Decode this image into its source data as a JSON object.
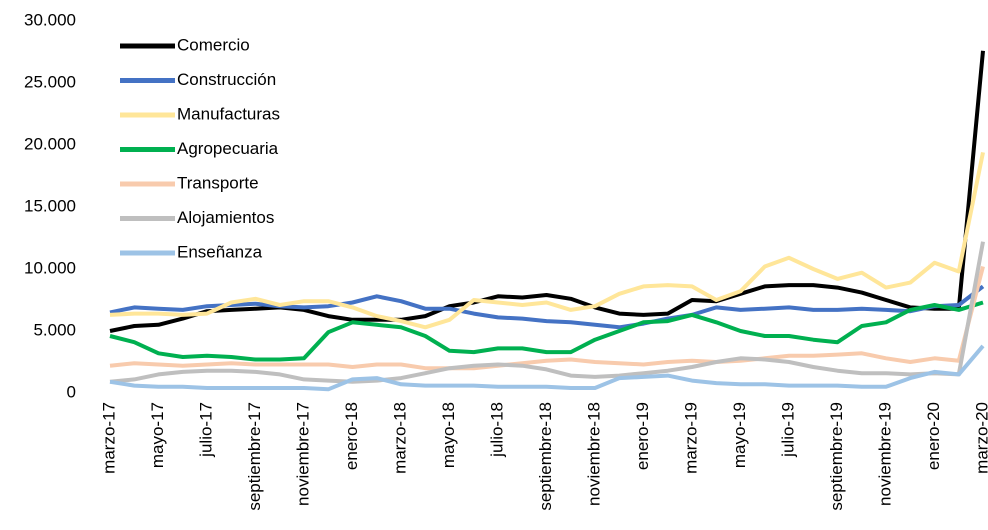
{
  "chart_data": {
    "type": "line",
    "categories": [
      "marzo-17",
      null,
      "mayo-17",
      null,
      "julio-17",
      null,
      "septiembre-17",
      null,
      "noviembre-17",
      null,
      "enero-18",
      null,
      "marzo-18",
      null,
      "mayo-18",
      null,
      "julio-18",
      null,
      "septiembre-18",
      null,
      "noviembre-18",
      null,
      "enero-19",
      null,
      "marzo-19",
      null,
      "mayo-19",
      null,
      "julio-19",
      null,
      "septiembre-19",
      null,
      "noviembre-19",
      null,
      "enero-20",
      null,
      "marzo-20"
    ],
    "series": [
      {
        "name": "Comercio",
        "color": "#000000",
        "values": [
          5000,
          5400,
          5500,
          6000,
          6600,
          6700,
          6800,
          6900,
          6700,
          6200,
          5900,
          5900,
          5900,
          6200,
          7000,
          7300,
          7800,
          7700,
          7900,
          7600,
          6900,
          6400,
          6300,
          6400,
          7500,
          7400,
          8000,
          8600,
          8700,
          8700,
          8500,
          8100,
          7500,
          6900,
          6800,
          6800,
          27600
        ]
      },
      {
        "name": "Construcción",
        "color": "#4472c4",
        "values": [
          6500,
          6900,
          6800,
          6700,
          7000,
          7100,
          7200,
          7000,
          6900,
          7000,
          7300,
          7800,
          7400,
          6800,
          6800,
          6400,
          6100,
          6000,
          5800,
          5700,
          5500,
          5300,
          5600,
          6000,
          6300,
          6900,
          6700,
          6800,
          6900,
          6700,
          6700,
          6800,
          6700,
          6600,
          7000,
          7100,
          8600
        ]
      },
      {
        "name": "Manufacturas",
        "color": "#ffe699",
        "values": [
          6300,
          6400,
          6400,
          6300,
          6400,
          7300,
          7600,
          7100,
          7400,
          7400,
          6900,
          6200,
          5800,
          5300,
          5900,
          7500,
          7300,
          7100,
          7300,
          6700,
          7000,
          8000,
          8600,
          8700,
          8600,
          7500,
          8200,
          10200,
          10900,
          10000,
          9200,
          9700,
          8500,
          8900,
          10500,
          9800,
          19400
        ]
      },
      {
        "name": "Agropecuaria",
        "color": "#00b050",
        "values": [
          4600,
          4100,
          3200,
          2900,
          3000,
          2900,
          2700,
          2700,
          2800,
          4900,
          5700,
          5500,
          5300,
          4600,
          3400,
          3300,
          3600,
          3600,
          3300,
          3300,
          4300,
          5000,
          5700,
          5800,
          6300,
          5700,
          5000,
          4600,
          4600,
          4300,
          4100,
          5400,
          5700,
          6700,
          7100,
          6700,
          7300
        ]
      },
      {
        "name": "Transporte",
        "color": "#f8cbad",
        "values": [
          2200,
          2400,
          2300,
          2200,
          2300,
          2400,
          2300,
          2300,
          2300,
          2300,
          2100,
          2300,
          2300,
          2000,
          2000,
          2000,
          2200,
          2400,
          2600,
          2700,
          2500,
          2400,
          2300,
          2500,
          2600,
          2500,
          2600,
          2800,
          3000,
          3000,
          3100,
          3200,
          2800,
          2500,
          2800,
          2600,
          10200
        ]
      },
      {
        "name": "Alojamientos",
        "color": "#bfbfbf",
        "values": [
          900,
          1100,
          1500,
          1700,
          1800,
          1800,
          1700,
          1500,
          1100,
          1000,
          900,
          1000,
          1200,
          1600,
          2000,
          2200,
          2300,
          2200,
          1900,
          1400,
          1300,
          1400,
          1600,
          1800,
          2100,
          2500,
          2800,
          2700,
          2500,
          2100,
          1800,
          1600,
          1600,
          1500,
          1600,
          1500,
          12200
        ]
      },
      {
        "name": "Enseñanza",
        "color": "#9dc3e6",
        "values": [
          900,
          600,
          500,
          500,
          400,
          400,
          400,
          400,
          400,
          300,
          1100,
          1200,
          700,
          600,
          600,
          600,
          500,
          500,
          500,
          400,
          400,
          1200,
          1300,
          1400,
          1000,
          800,
          700,
          700,
          600,
          600,
          600,
          500,
          500,
          1200,
          1700,
          1500,
          3800
        ]
      }
    ],
    "ylim": [
      0,
      30000
    ],
    "yticks": [
      0,
      {
        "value": 5000,
        "label": "5.000"
      },
      {
        "value": 10000,
        "label": "10.000"
      },
      {
        "value": 15000,
        "label": "15.000"
      },
      {
        "value": 20000,
        "label": "20.000"
      },
      {
        "value": 25000,
        "label": "25.000"
      },
      {
        "value": 30000,
        "label": "30.000"
      }
    ],
    "legend": "top-left"
  }
}
